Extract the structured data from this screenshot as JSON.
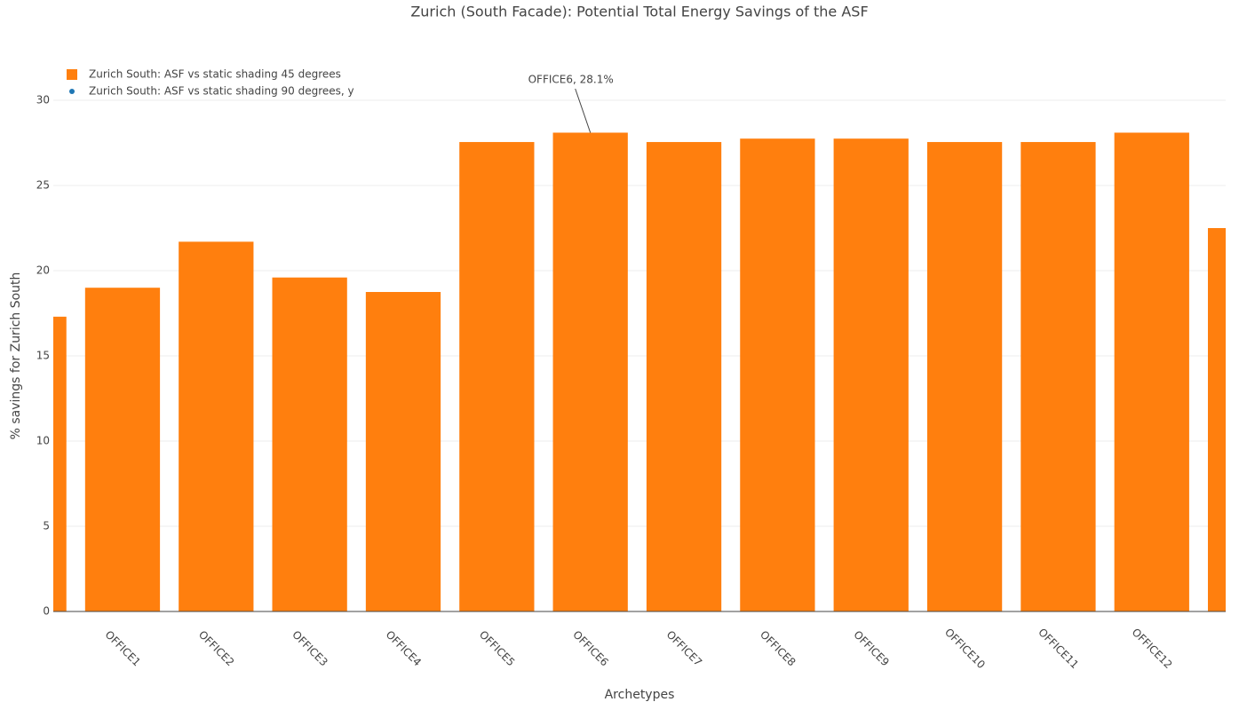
{
  "chart_data": {
    "type": "bar",
    "title": "Zurich (South Facade): Potential Total Energy Savings of the ASF",
    "x_label": "Archetypes",
    "y_label": "% savings  for Zurich South",
    "categories": [
      null,
      "OFFICE1",
      "OFFICE2",
      "OFFICE3",
      "OFFICE4",
      "OFFICE5",
      "OFFICE6",
      "OFFICE7",
      "OFFICE8",
      "OFFICE9",
      "OFFICE10",
      "OFFICE11",
      "OFFICE12",
      null
    ],
    "series": [
      {
        "name": "Zurich South: ASF vs static shading 45 degrees",
        "type": "bar",
        "color": "#ff7f0e",
        "values": [
          17.3,
          19.0,
          21.7,
          19.6,
          18.75,
          27.55,
          28.1,
          27.55,
          27.75,
          27.75,
          27.55,
          27.55,
          28.1,
          22.5
        ]
      },
      {
        "name": "Zurich South: ASF vs static shading 90 degrees, y",
        "type": "scatter",
        "color": "#1f77b4",
        "values": [
          null,
          null,
          null,
          null,
          null,
          null,
          null,
          null,
          null,
          null,
          null,
          null,
          null,
          null
        ]
      }
    ],
    "annotations": [
      {
        "text": "OFFICE6, 28.1%",
        "x": "OFFICE6",
        "y": 28.1
      }
    ],
    "xlim": [
      0.26,
      12.79
    ],
    "ylim": [
      0,
      30
    ],
    "yticks": [
      0,
      5,
      10,
      15,
      20,
      25,
      30
    ],
    "grid": true,
    "legend": "top-left"
  }
}
